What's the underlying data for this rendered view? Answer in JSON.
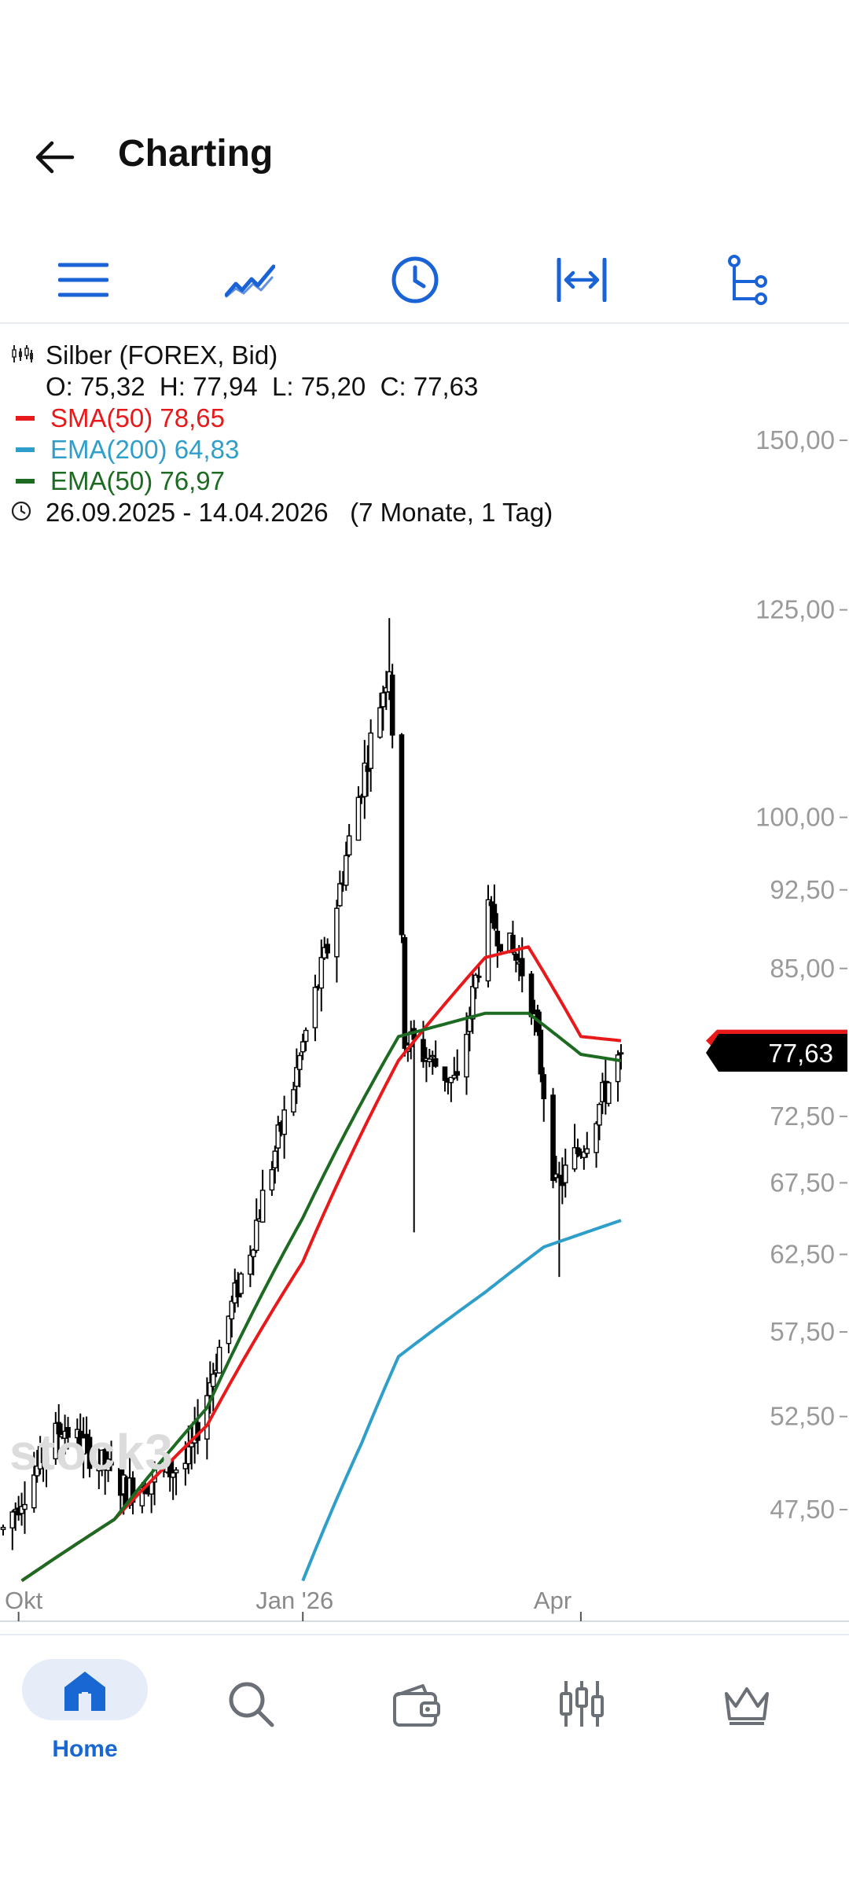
{
  "header": {
    "title": "Charting"
  },
  "toolbar": {
    "items": [
      {
        "icon": "menu-icon"
      },
      {
        "icon": "chart-type-icon"
      },
      {
        "icon": "clock-icon"
      },
      {
        "icon": "zoom-range-icon"
      },
      {
        "icon": "indicators-tree-icon"
      }
    ]
  },
  "legend": {
    "instrument": "Silber (FOREX, Bid)",
    "ohlc": "O: 75,32  H: 77,94  L: 75,20  C: 77,63",
    "sma50": "SMA(50) 78,65",
    "ema200": "EMA(200) 64,83",
    "ema50": "EMA(50) 76,97",
    "range": "26.09.2025 - 14.04.2026   (7 Monate, 1 Tag)",
    "colors": {
      "sma50": "#e8191b",
      "ema200": "#2f9fc9",
      "ema50": "#1d6b22"
    }
  },
  "chart_data": {
    "type": "line",
    "title": "Silber (FOREX, Bid)",
    "xlabel": "",
    "ylabel": "",
    "yscale": "log",
    "ylim": [
      44,
      165
    ],
    "y_ticks": [
      "150,00",
      "125,00",
      "100,00",
      "92,50",
      "85,00",
      "72,50",
      "67,50",
      "62,50",
      "57,50",
      "52,50",
      "47,50"
    ],
    "y_tick_values": [
      150,
      125,
      100,
      92.5,
      85,
      72.5,
      67.5,
      62.5,
      57.5,
      52.5,
      47.5
    ],
    "x_ticks": [
      "Okt",
      "Jan '26",
      "Apr"
    ],
    "x_tick_values": [
      "2025-10-01",
      "2026-01-01",
      "2026-04-01"
    ],
    "x_range": [
      "2025-09-26",
      "2026-04-14"
    ],
    "last_price": "77,63",
    "last_value": 77.63,
    "series": [
      {
        "name": "Silber",
        "type": "candlestick",
        "x": [
          "2025-09-26",
          "2025-10-15",
          "2025-11-05",
          "2025-11-25",
          "2025-12-15",
          "2025-12-29",
          "2026-01-10",
          "2026-01-29",
          "2026-02-03",
          "2026-02-20",
          "2026-03-02",
          "2026-03-15",
          "2026-03-24",
          "2026-04-03",
          "2026-04-14"
        ],
        "values": [
          46.5,
          52,
          48.5,
          50,
          63,
          75,
          88,
          118,
          79,
          75,
          90,
          84,
          67,
          71,
          77.63
        ]
      },
      {
        "name": "SMA(50)",
        "x": [
          "2025-10-02",
          "2025-11-01",
          "2025-12-01",
          "2026-01-01",
          "2026-02-01",
          "2026-03-01",
          "2026-03-15",
          "2026-04-01",
          "2026-04-14"
        ],
        "values": [
          44,
          47,
          52,
          62,
          77,
          86,
          87,
          79,
          78.65
        ]
      },
      {
        "name": "EMA(200)",
        "x": [
          "2026-01-01",
          "2026-01-20",
          "2026-02-01",
          "2026-03-01",
          "2026-03-20",
          "2026-04-14"
        ],
        "values": [
          44,
          51,
          56,
          60,
          63,
          64.83
        ]
      },
      {
        "name": "EMA(50)",
        "x": [
          "2025-10-02",
          "2025-11-01",
          "2025-12-01",
          "2026-01-01",
          "2026-02-01",
          "2026-03-01",
          "2026-03-15",
          "2026-04-01",
          "2026-04-14"
        ],
        "values": [
          44,
          47,
          53,
          65,
          79,
          81,
          81,
          77.5,
          76.97
        ]
      }
    ]
  },
  "nav": {
    "items": [
      {
        "label": "Home",
        "icon": "home-icon",
        "active": true
      },
      {
        "label": "",
        "icon": "search-icon"
      },
      {
        "label": "",
        "icon": "wallet-icon"
      },
      {
        "label": "",
        "icon": "candlestick-icon"
      },
      {
        "label": "",
        "icon": "crown-icon"
      }
    ]
  },
  "watermark": "stock3"
}
